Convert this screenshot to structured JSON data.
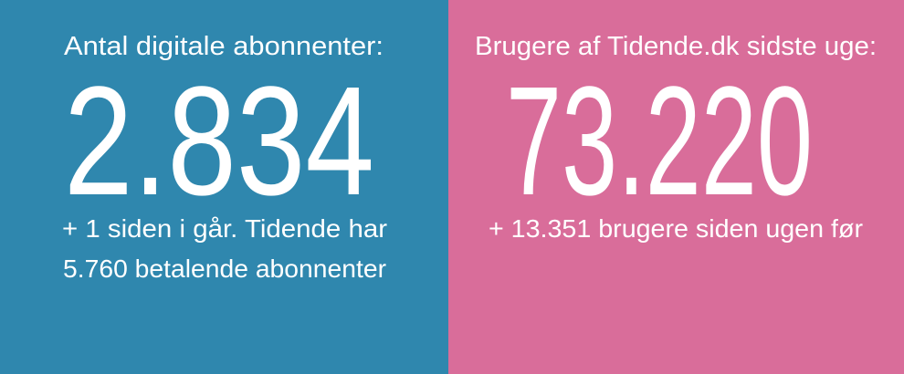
{
  "panels": [
    {
      "label": "Antal digitale abonnenter:",
      "number": "2.834",
      "lines": [
        "+ 1 siden i går. Tidende har",
        "5.760 betalende abonnenter"
      ]
    },
    {
      "label": "Brugere af Tidende.dk sidste uge:",
      "number": "73.220",
      "lines": [
        "+ 13.351 brugere siden ugen før"
      ]
    }
  ]
}
